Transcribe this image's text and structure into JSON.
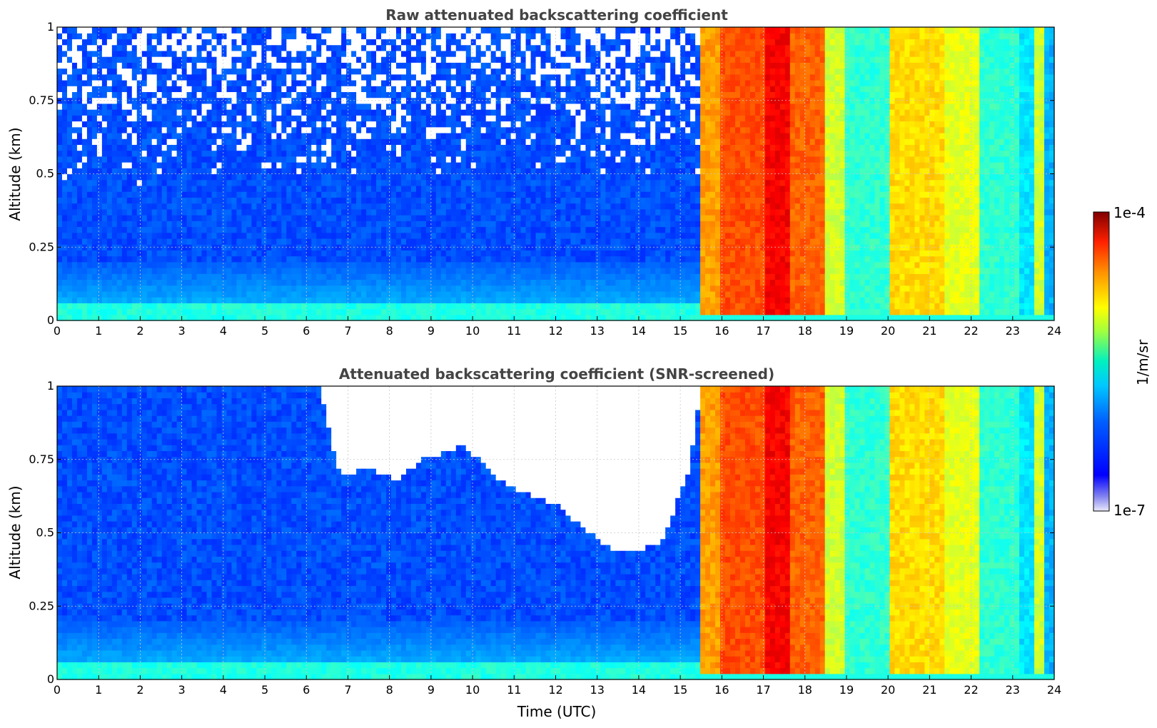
{
  "chart_data": [
    {
      "type": "heatmap",
      "title": "Raw attenuated backscattering coefficient",
      "xlabel": "",
      "ylabel": "Altitude (km)",
      "xlim": [
        0,
        24
      ],
      "ylim": [
        0,
        1
      ],
      "x_ticks": [
        "0",
        "1",
        "2",
        "3",
        "4",
        "5",
        "6",
        "7",
        "8",
        "9",
        "10",
        "11",
        "12",
        "13",
        "14",
        "15",
        "16",
        "17",
        "18",
        "19",
        "20",
        "21",
        "22",
        "23",
        "24"
      ],
      "y_ticks": [
        "0",
        "0.25",
        "0.5",
        "0.75",
        "1"
      ],
      "grid": true,
      "screened": false,
      "noise_above_km": 0.45,
      "segments": [
        {
          "from": 0,
          "to": 15.5,
          "level": 0.2
        },
        {
          "from": 15.5,
          "to": 16.0,
          "level": 0.72
        },
        {
          "from": 16.0,
          "to": 17.0,
          "level": 0.8
        },
        {
          "from": 17.0,
          "to": 17.7,
          "level": 0.88
        },
        {
          "from": 17.7,
          "to": 18.5,
          "level": 0.78
        },
        {
          "from": 18.5,
          "to": 19.0,
          "level": 0.58
        },
        {
          "from": 19.0,
          "to": 20.0,
          "level": 0.42
        },
        {
          "from": 20.0,
          "to": 21.4,
          "level": 0.66
        },
        {
          "from": 21.4,
          "to": 22.2,
          "level": 0.6
        },
        {
          "from": 22.2,
          "to": 23.2,
          "level": 0.42
        },
        {
          "from": 23.2,
          "to": 23.5,
          "level": 0.35
        },
        {
          "from": 23.5,
          "to": 23.75,
          "level": 0.58
        },
        {
          "from": 23.75,
          "to": 24.0,
          "level": 0.3
        }
      ]
    },
    {
      "type": "heatmap",
      "title": "Attenuated backscattering coefficient (SNR-screened)",
      "xlabel": "Time (UTC)",
      "ylabel": "Altitude (km)",
      "xlim": [
        0,
        24
      ],
      "ylim": [
        0,
        1
      ],
      "x_ticks": [
        "0",
        "1",
        "2",
        "3",
        "4",
        "5",
        "6",
        "7",
        "8",
        "9",
        "10",
        "11",
        "12",
        "13",
        "14",
        "15",
        "16",
        "17",
        "18",
        "19",
        "20",
        "21",
        "22",
        "23",
        "24"
      ],
      "y_ticks": [
        "0",
        "0.25",
        "0.5",
        "0.75",
        "1"
      ],
      "grid": true,
      "screened": true,
      "white_region_top_km": 1.0,
      "white_region": [
        [
          6.4,
          0.95
        ],
        [
          6.8,
          0.7
        ],
        [
          7.5,
          0.72
        ],
        [
          8.2,
          0.68
        ],
        [
          8.8,
          0.75
        ],
        [
          9.8,
          0.8
        ],
        [
          10.5,
          0.7
        ],
        [
          11.2,
          0.64
        ],
        [
          12.0,
          0.6
        ],
        [
          13.0,
          0.48
        ],
        [
          13.5,
          0.43
        ],
        [
          14.5,
          0.46
        ],
        [
          15.2,
          0.7
        ],
        [
          15.45,
          0.95
        ]
      ],
      "segments": [
        {
          "from": 0,
          "to": 15.5,
          "level": 0.2
        },
        {
          "from": 15.5,
          "to": 16.0,
          "level": 0.72
        },
        {
          "from": 16.0,
          "to": 17.0,
          "level": 0.8
        },
        {
          "from": 17.0,
          "to": 17.7,
          "level": 0.88
        },
        {
          "from": 17.7,
          "to": 18.5,
          "level": 0.78
        },
        {
          "from": 18.5,
          "to": 19.0,
          "level": 0.58
        },
        {
          "from": 19.0,
          "to": 20.0,
          "level": 0.42
        },
        {
          "from": 20.0,
          "to": 21.4,
          "level": 0.66
        },
        {
          "from": 21.4,
          "to": 22.2,
          "level": 0.6
        },
        {
          "from": 22.2,
          "to": 23.2,
          "level": 0.42
        },
        {
          "from": 23.2,
          "to": 23.5,
          "level": 0.35
        },
        {
          "from": 23.5,
          "to": 23.75,
          "level": 0.58
        },
        {
          "from": 23.75,
          "to": 24.0,
          "level": 0.3
        }
      ]
    }
  ],
  "colorbar": {
    "label": "1/m/sr",
    "max_label": "1e-4",
    "min_label": "1e-7",
    "scale": "log",
    "colormap": "jet"
  }
}
